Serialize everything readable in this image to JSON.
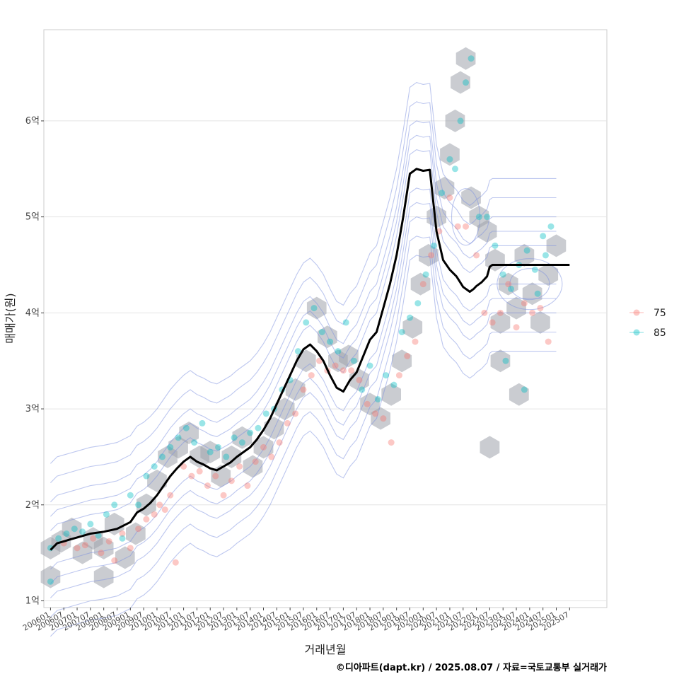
{
  "chart_data": {
    "type": "scatter",
    "xlabel": "거래년월",
    "ylabel": "매매가(원)",
    "caption": "©디아파트(dapt.kr) / 2025.08.07 / 자료=국토교통부 실거래가",
    "xlim": [
      2005.75,
      2026.9
    ],
    "ylim": [
      0.93,
      6.95
    ],
    "y_ticks": [
      {
        "value": 1,
        "label": "1억"
      },
      {
        "value": 2,
        "label": "2억"
      },
      {
        "value": 3,
        "label": "3억"
      },
      {
        "value": 4,
        "label": "4억"
      },
      {
        "value": 5,
        "label": "5억"
      },
      {
        "value": 6,
        "label": "6억"
      }
    ],
    "x_ticks": [
      "200601",
      "200607",
      "200701",
      "200707",
      "200801",
      "200807",
      "200901",
      "200907",
      "201001",
      "201007",
      "201101",
      "201107",
      "201201",
      "201207",
      "201301",
      "201307",
      "201401",
      "201407",
      "201501",
      "201507",
      "201601",
      "201607",
      "201701",
      "201707",
      "201801",
      "201807",
      "201901",
      "201907",
      "202001",
      "202007",
      "202101",
      "202107",
      "202201",
      "202207",
      "202301",
      "202307",
      "202401",
      "202407",
      "202501",
      "202507"
    ],
    "legend": {
      "position": "right",
      "entries": [
        {
          "name": "75",
          "color": "#F8766D"
        },
        {
          "name": "85",
          "color": "#00BFC4"
        }
      ]
    },
    "colors": {
      "hexbin": "#9ea3ab",
      "contour": "#7b8fe0",
      "trend": "#000000",
      "grid": "#e4e4e4",
      "panel_border": "#cccccc"
    },
    "grid": true,
    "trend_line": {
      "x": [
        2006.0,
        2006.25,
        2006.5,
        2006.75,
        2007.0,
        2007.5,
        2008.0,
        2008.5,
        2009.0,
        2009.25,
        2009.5,
        2009.75,
        2010.0,
        2010.25,
        2010.5,
        2010.75,
        2011.0,
        2011.25,
        2011.5,
        2011.75,
        2012.0,
        2012.25,
        2012.5,
        2012.75,
        2013.0,
        2013.25,
        2013.5,
        2013.75,
        2014.0,
        2014.25,
        2014.5,
        2014.75,
        2015.0,
        2015.25,
        2015.5,
        2015.75,
        2016.0,
        2016.25,
        2016.5,
        2016.75,
        2017.0,
        2017.25,
        2017.5,
        2017.75,
        2018.0,
        2018.25,
        2018.5,
        2018.75,
        2019.0,
        2019.25,
        2019.5,
        2019.75,
        2020.0,
        2020.25,
        2020.5,
        2020.75,
        2021.0,
        2021.25,
        2021.5,
        2021.75,
        2021.9,
        2022.0,
        2022.2,
        2022.4,
        2022.5,
        2022.6,
        2022.75,
        2023.0,
        2023.25,
        2023.5,
        2023.75,
        2024.0,
        2024.25,
        2024.5,
        2024.75,
        2025.0,
        2025.25,
        2025.5
      ],
      "y": [
        1.53,
        1.6,
        1.62,
        1.64,
        1.66,
        1.7,
        1.72,
        1.75,
        1.82,
        1.92,
        1.96,
        2.02,
        2.1,
        2.2,
        2.3,
        2.38,
        2.45,
        2.5,
        2.45,
        2.42,
        2.38,
        2.36,
        2.4,
        2.44,
        2.5,
        2.55,
        2.6,
        2.68,
        2.78,
        2.9,
        3.05,
        3.2,
        3.35,
        3.5,
        3.62,
        3.67,
        3.6,
        3.5,
        3.35,
        3.22,
        3.18,
        3.3,
        3.38,
        3.55,
        3.72,
        3.8,
        4.05,
        4.3,
        4.6,
        5.0,
        5.45,
        5.5,
        5.48,
        5.49,
        4.85,
        4.55,
        4.45,
        4.38,
        4.27,
        4.22,
        4.25,
        4.28,
        4.32,
        4.38,
        4.48,
        4.5,
        4.5,
        4.5,
        4.5,
        4.5,
        4.5,
        4.5,
        4.5,
        4.5,
        4.5,
        4.5,
        4.5,
        4.5
      ]
    },
    "series": [
      {
        "name": "75",
        "points": [
          [
            2006.5,
            1.6
          ],
          [
            2007.0,
            1.55
          ],
          [
            2007.3,
            1.58
          ],
          [
            2007.6,
            1.65
          ],
          [
            2007.9,
            1.5
          ],
          [
            2008.2,
            1.62
          ],
          [
            2008.4,
            1.42
          ],
          [
            2008.7,
            1.7
          ],
          [
            2009.0,
            1.55
          ],
          [
            2009.3,
            1.75
          ],
          [
            2009.6,
            1.85
          ],
          [
            2009.9,
            1.9
          ],
          [
            2010.1,
            2.0
          ],
          [
            2010.3,
            1.95
          ],
          [
            2010.5,
            2.1
          ],
          [
            2010.7,
            1.4
          ],
          [
            2011.0,
            2.4
          ],
          [
            2011.3,
            2.3
          ],
          [
            2011.6,
            2.35
          ],
          [
            2011.9,
            2.2
          ],
          [
            2012.2,
            2.3
          ],
          [
            2012.5,
            2.1
          ],
          [
            2012.8,
            2.25
          ],
          [
            2013.1,
            2.4
          ],
          [
            2013.4,
            2.2
          ],
          [
            2013.7,
            2.45
          ],
          [
            2014.0,
            2.6
          ],
          [
            2014.3,
            2.5
          ],
          [
            2014.6,
            2.65
          ],
          [
            2014.9,
            2.85
          ],
          [
            2015.2,
            2.95
          ],
          [
            2015.5,
            3.2
          ],
          [
            2015.8,
            3.35
          ],
          [
            2016.1,
            3.5
          ],
          [
            2016.4,
            3.4
          ],
          [
            2016.7,
            3.45
          ],
          [
            2017.0,
            3.4
          ],
          [
            2017.3,
            3.4
          ],
          [
            2017.6,
            3.3
          ],
          [
            2017.9,
            3.05
          ],
          [
            2018.2,
            2.95
          ],
          [
            2018.5,
            2.9
          ],
          [
            2018.8,
            2.65
          ],
          [
            2019.1,
            3.35
          ],
          [
            2019.4,
            3.55
          ],
          [
            2019.7,
            3.7
          ],
          [
            2020.0,
            4.3
          ],
          [
            2020.3,
            4.6
          ],
          [
            2020.6,
            4.85
          ],
          [
            2021.0,
            5.2
          ],
          [
            2021.3,
            4.9
          ],
          [
            2021.6,
            4.9
          ],
          [
            2022.0,
            4.6
          ],
          [
            2022.3,
            4.0
          ],
          [
            2022.6,
            3.9
          ],
          [
            2022.9,
            4.0
          ],
          [
            2023.2,
            4.3
          ],
          [
            2023.5,
            3.85
          ],
          [
            2023.8,
            4.1
          ],
          [
            2024.1,
            4.0
          ],
          [
            2024.4,
            4.05
          ],
          [
            2024.7,
            3.7
          ]
        ]
      },
      {
        "name": "85",
        "points": [
          [
            2006.0,
            1.55
          ],
          [
            2006.0,
            1.2
          ],
          [
            2006.3,
            1.65
          ],
          [
            2006.6,
            1.7
          ],
          [
            2006.9,
            1.75
          ],
          [
            2007.2,
            1.72
          ],
          [
            2007.5,
            1.8
          ],
          [
            2007.8,
            1.68
          ],
          [
            2008.1,
            1.9
          ],
          [
            2008.4,
            2.0
          ],
          [
            2008.7,
            1.65
          ],
          [
            2009.0,
            2.1
          ],
          [
            2009.3,
            2.0
          ],
          [
            2009.6,
            2.3
          ],
          [
            2009.9,
            2.4
          ],
          [
            2010.2,
            2.5
          ],
          [
            2010.5,
            2.6
          ],
          [
            2010.8,
            2.7
          ],
          [
            2011.1,
            2.8
          ],
          [
            2011.4,
            2.65
          ],
          [
            2011.7,
            2.85
          ],
          [
            2012.0,
            2.55
          ],
          [
            2012.3,
            2.6
          ],
          [
            2012.6,
            2.5
          ],
          [
            2012.9,
            2.7
          ],
          [
            2013.2,
            2.65
          ],
          [
            2013.5,
            2.75
          ],
          [
            2013.8,
            2.8
          ],
          [
            2014.1,
            2.95
          ],
          [
            2014.4,
            3.0
          ],
          [
            2014.7,
            3.2
          ],
          [
            2015.0,
            3.3
          ],
          [
            2015.3,
            3.6
          ],
          [
            2015.6,
            3.9
          ],
          [
            2015.9,
            4.05
          ],
          [
            2016.2,
            3.8
          ],
          [
            2016.5,
            3.7
          ],
          [
            2016.8,
            3.6
          ],
          [
            2017.1,
            3.9
          ],
          [
            2017.4,
            3.5
          ],
          [
            2017.7,
            3.2
          ],
          [
            2018.0,
            3.45
          ],
          [
            2018.3,
            3.1
          ],
          [
            2018.6,
            3.35
          ],
          [
            2018.9,
            3.25
          ],
          [
            2019.2,
            3.8
          ],
          [
            2019.5,
            3.95
          ],
          [
            2019.8,
            4.1
          ],
          [
            2020.1,
            4.4
          ],
          [
            2020.4,
            4.7
          ],
          [
            2020.7,
            5.25
          ],
          [
            2021.0,
            5.6
          ],
          [
            2021.2,
            5.5
          ],
          [
            2021.4,
            6.0
          ],
          [
            2021.6,
            6.4
          ],
          [
            2021.8,
            6.65
          ],
          [
            2022.1,
            5.0
          ],
          [
            2022.4,
            5.0
          ],
          [
            2022.7,
            4.7
          ],
          [
            2023.0,
            4.4
          ],
          [
            2023.3,
            4.25
          ],
          [
            2023.6,
            4.5
          ],
          [
            2023.9,
            4.65
          ],
          [
            2024.2,
            4.45
          ],
          [
            2024.5,
            4.8
          ],
          [
            2024.8,
            4.9
          ],
          [
            2023.1,
            3.5
          ],
          [
            2023.8,
            3.2
          ],
          [
            2024.3,
            4.2
          ],
          [
            2024.6,
            4.6
          ]
        ]
      }
    ],
    "hexbins": [
      [
        2006.0,
        1.55
      ],
      [
        2006.0,
        1.25
      ],
      [
        2006.4,
        1.62
      ],
      [
        2006.8,
        1.75
      ],
      [
        2007.2,
        1.5
      ],
      [
        2007.6,
        1.65
      ],
      [
        2008.0,
        1.25
      ],
      [
        2008.0,
        1.55
      ],
      [
        2008.4,
        1.8
      ],
      [
        2008.8,
        1.45
      ],
      [
        2009.2,
        1.7
      ],
      [
        2009.6,
        2.0
      ],
      [
        2010.0,
        2.25
      ],
      [
        2010.4,
        2.5
      ],
      [
        2010.8,
        2.6
      ],
      [
        2011.2,
        2.75
      ],
      [
        2011.6,
        2.5
      ],
      [
        2012.0,
        2.55
      ],
      [
        2012.4,
        2.3
      ],
      [
        2012.8,
        2.5
      ],
      [
        2013.2,
        2.7
      ],
      [
        2013.6,
        2.4
      ],
      [
        2014.0,
        2.6
      ],
      [
        2014.4,
        2.8
      ],
      [
        2014.8,
        3.0
      ],
      [
        2015.2,
        3.2
      ],
      [
        2015.6,
        3.5
      ],
      [
        2016.0,
        4.05
      ],
      [
        2016.4,
        3.75
      ],
      [
        2016.8,
        3.5
      ],
      [
        2017.2,
        3.55
      ],
      [
        2017.6,
        3.3
      ],
      [
        2018.0,
        3.05
      ],
      [
        2018.4,
        2.9
      ],
      [
        2018.8,
        3.15
      ],
      [
        2019.2,
        3.5
      ],
      [
        2019.6,
        3.85
      ],
      [
        2019.9,
        4.3
      ],
      [
        2020.2,
        4.6
      ],
      [
        2020.5,
        5.0
      ],
      [
        2020.8,
        5.3
      ],
      [
        2021.0,
        5.65
      ],
      [
        2021.2,
        6.0
      ],
      [
        2021.4,
        6.4
      ],
      [
        2021.6,
        6.65
      ],
      [
        2021.8,
        5.2
      ],
      [
        2022.1,
        5.0
      ],
      [
        2022.4,
        4.85
      ],
      [
        2022.7,
        4.55
      ],
      [
        2022.9,
        3.9
      ],
      [
        2023.2,
        4.3
      ],
      [
        2023.5,
        4.05
      ],
      [
        2023.8,
        4.6
      ],
      [
        2024.1,
        4.2
      ],
      [
        2024.4,
        3.9
      ],
      [
        2024.7,
        4.4
      ],
      [
        2025.0,
        4.7
      ],
      [
        2022.9,
        3.5
      ],
      [
        2023.6,
        3.15
      ],
      [
        2022.5,
        2.6
      ]
    ]
  }
}
